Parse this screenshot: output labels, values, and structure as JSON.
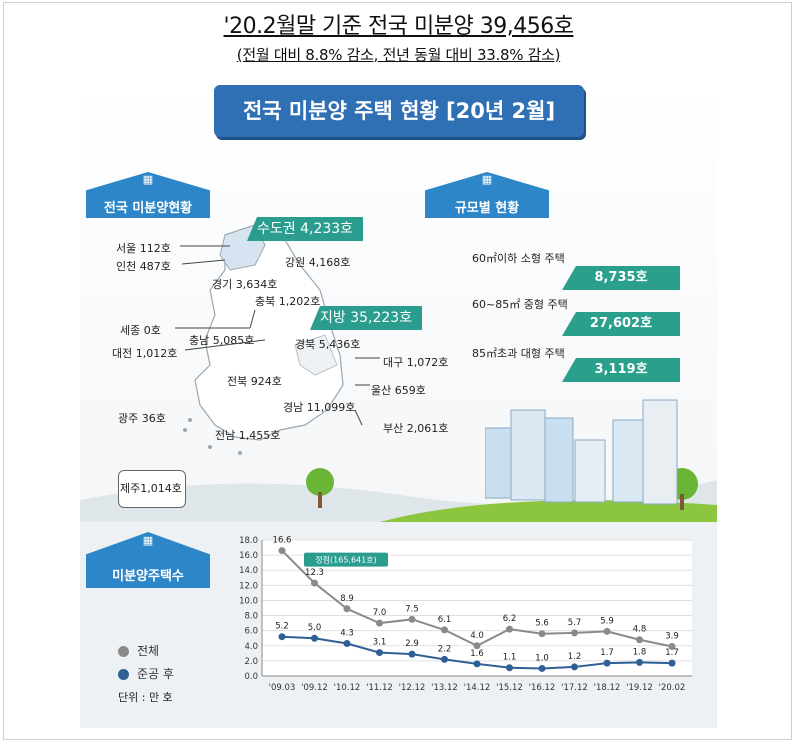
{
  "header": {
    "title": "'20.2월말 기준 전국 미분양 39,456호",
    "subtitle": "(전월 대비 8.8% 감소, 전년 동월 대비 33.8% 감소)"
  },
  "banner": "전국 미분양 주택 현황 [20년 2월]",
  "sections": {
    "national": "전국 미분양현황",
    "by_size": "규모별 현황",
    "trend": "미분양주택수"
  },
  "regions": {
    "capital_tag": "수도권 4,233호",
    "local_tag": "지방 35,223호",
    "labels": [
      "서울  112호",
      "인천 487호",
      "경기 3,634호",
      "강원 4,168호",
      "충북 1,202호",
      "세종 0호",
      "충남 5,085호",
      "대전 1,012호",
      "경북 5,436호",
      "대구 1,072호",
      "전북 924호",
      "울산 659호",
      "경남 11,099호",
      "광주 36호",
      "부산 2,061호",
      "전남 1,455호",
      "제주1,014호"
    ]
  },
  "sizes": [
    {
      "label": "60㎡이하 소형 주택",
      "value": "8,735호"
    },
    {
      "label": "60~85㎡ 중형 주택",
      "value": "27,602호"
    },
    {
      "label": "85㎡초과 대형 주택",
      "value": "3,119호"
    }
  ],
  "legend": {
    "total": "전체",
    "completed": "준공 후",
    "unit": "단위 : 만 호"
  },
  "colors": {
    "total_line": "#8a8a8a",
    "completed_line": "#2f5f94",
    "banner": "#2f6fb3",
    "teal": "#2a9d8f",
    "peak_tag": "#2a9d8f"
  },
  "chart_data": {
    "type": "line",
    "categories": [
      "'09.03",
      "'09.12",
      "'10.12",
      "'11.12",
      "'12.12",
      "'13.12",
      "'14.12",
      "'15.12",
      "'16.12",
      "'17.12",
      "'18.12",
      "'19.12",
      "'20.02"
    ],
    "series": [
      {
        "name": "전체",
        "values": [
          16.6,
          12.3,
          8.9,
          7.0,
          7.5,
          6.1,
          4.0,
          6.2,
          5.6,
          5.7,
          5.9,
          4.8,
          3.9
        ],
        "labels": [
          "16.6",
          "12.3",
          "8.9",
          "7.0",
          "7.5",
          "6.1",
          "4.0",
          "6.2",
          "5.6",
          "5.7",
          "5.9",
          "4.8",
          "3.9"
        ]
      },
      {
        "name": "준공 후",
        "values": [
          5.2,
          5.0,
          4.3,
          3.1,
          2.9,
          2.2,
          1.6,
          1.1,
          1.0,
          1.2,
          1.7,
          1.8,
          1.7
        ],
        "labels": [
          "5.2",
          "5.0",
          "4.3",
          "3.1",
          "2.9",
          "2.2",
          "1.6",
          "1.1",
          "1.0",
          "1.2",
          "1.7",
          "1.8",
          "1.7"
        ]
      }
    ],
    "ylim": [
      0,
      18
    ],
    "yticks": [
      "0.0",
      "2.0",
      "4.0",
      "6.0",
      "8.0",
      "10.0",
      "12.0",
      "14.0",
      "16.0",
      "18.0"
    ],
    "annotation": "정점(165,641호)",
    "grid": true,
    "xlabel": "",
    "ylabel": ""
  }
}
